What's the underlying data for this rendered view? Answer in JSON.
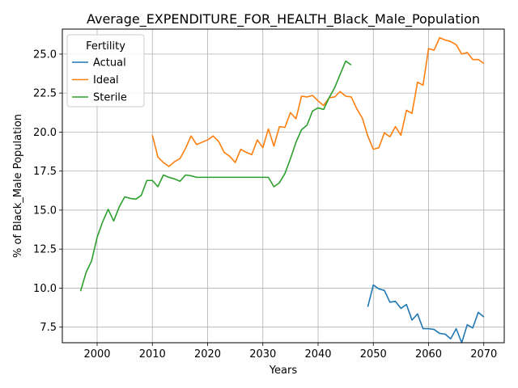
{
  "chart_data": {
    "type": "line",
    "title": "Average_EXPENDITURE_FOR_HEALTH_Black_Male_Population",
    "xlabel": "Years",
    "ylabel": "% of Black_Male Population",
    "xlim": [
      1993.7,
      2073.7
    ],
    "ylim": [
      6.5,
      26.6
    ],
    "xticks": [
      2000,
      2010,
      2020,
      2030,
      2040,
      2050,
      2060,
      2070
    ],
    "yticks": [
      7.5,
      10.0,
      12.5,
      15.0,
      17.5,
      20.0,
      22.5,
      25.0
    ],
    "ytick_labels": [
      "7.5",
      "10.0",
      "12.5",
      "15.0",
      "17.5",
      "20.0",
      "22.5",
      "25.0"
    ],
    "grid": true,
    "legend": {
      "title": "Fertility",
      "position": "top-left"
    },
    "series": [
      {
        "name": "Actual",
        "color": "#1f77b4",
        "x": [
          2049,
          2050,
          2051,
          2052,
          2053,
          2054,
          2055,
          2056,
          2057,
          2058,
          2059,
          2060,
          2061,
          2062,
          2063,
          2064,
          2065,
          2066,
          2067,
          2068,
          2069,
          2070
        ],
        "y": [
          8.8,
          10.2,
          9.95,
          9.85,
          9.1,
          9.15,
          8.7,
          8.95,
          7.95,
          8.35,
          7.4,
          7.4,
          7.35,
          7.1,
          7.05,
          6.75,
          7.4,
          6.5,
          7.65,
          7.45,
          8.45,
          8.15
        ]
      },
      {
        "name": "Ideal",
        "color": "#ff7f0e",
        "x": [
          2010,
          2011,
          2012,
          2013,
          2014,
          2015,
          2016,
          2017,
          2018,
          2019,
          2020,
          2021,
          2022,
          2023,
          2024,
          2025,
          2026,
          2027,
          2028,
          2029,
          2030,
          2031,
          2032,
          2033,
          2034,
          2035,
          2036,
          2037,
          2038,
          2039,
          2040,
          2041,
          2042,
          2043,
          2044,
          2045,
          2046,
          2047,
          2048,
          2049,
          2050,
          2051,
          2052,
          2053,
          2054,
          2055,
          2056,
          2057,
          2058,
          2059,
          2060,
          2061,
          2062,
          2063,
          2064,
          2065,
          2066,
          2067,
          2068,
          2069,
          2070
        ],
        "y": [
          19.8,
          18.4,
          18.05,
          17.8,
          18.1,
          18.3,
          18.95,
          19.75,
          19.2,
          19.35,
          19.5,
          19.75,
          19.4,
          18.7,
          18.45,
          18.05,
          18.9,
          18.7,
          18.55,
          19.5,
          19.0,
          20.2,
          19.1,
          20.35,
          20.3,
          21.25,
          20.85,
          22.3,
          22.25,
          22.35,
          22.0,
          21.7,
          22.2,
          22.25,
          22.6,
          22.3,
          22.25,
          21.5,
          20.9,
          19.75,
          18.9,
          19.0,
          19.95,
          19.7,
          20.35,
          19.8,
          21.4,
          21.2,
          23.2,
          23.0,
          25.35,
          25.25,
          26.05,
          25.9,
          25.8,
          25.6,
          25.0,
          25.1,
          24.65,
          24.65,
          24.4
        ]
      },
      {
        "name": "Sterile",
        "color": "#2ca02c",
        "x": [
          1997,
          1998,
          1999,
          2000,
          2001,
          2002,
          2003,
          2004,
          2005,
          2006,
          2007,
          2008,
          2009,
          2010,
          2011,
          2012,
          2013,
          2014,
          2015,
          2016,
          2017,
          2018,
          2019,
          2020,
          2021,
          2022,
          2023,
          2024,
          2025,
          2026,
          2027,
          2028,
          2029,
          2030,
          2031,
          2032,
          2033,
          2034,
          2035,
          2036,
          2037,
          2038,
          2039,
          2040,
          2041,
          2042,
          2043,
          2044,
          2045,
          2046
        ],
        "y": [
          9.8,
          11.0,
          11.75,
          13.25,
          14.25,
          15.05,
          14.3,
          15.2,
          15.85,
          15.75,
          15.7,
          15.95,
          16.9,
          16.9,
          16.5,
          17.25,
          17.1,
          17.0,
          16.85,
          17.25,
          17.2,
          17.1,
          17.1,
          17.1,
          17.1,
          17.1,
          17.1,
          17.1,
          17.1,
          17.1,
          17.1,
          17.1,
          17.1,
          17.1,
          17.1,
          16.5,
          16.75,
          17.35,
          18.3,
          19.35,
          20.15,
          20.45,
          21.35,
          21.55,
          21.45,
          22.2,
          22.85,
          23.7,
          24.55,
          24.3
        ]
      }
    ]
  }
}
